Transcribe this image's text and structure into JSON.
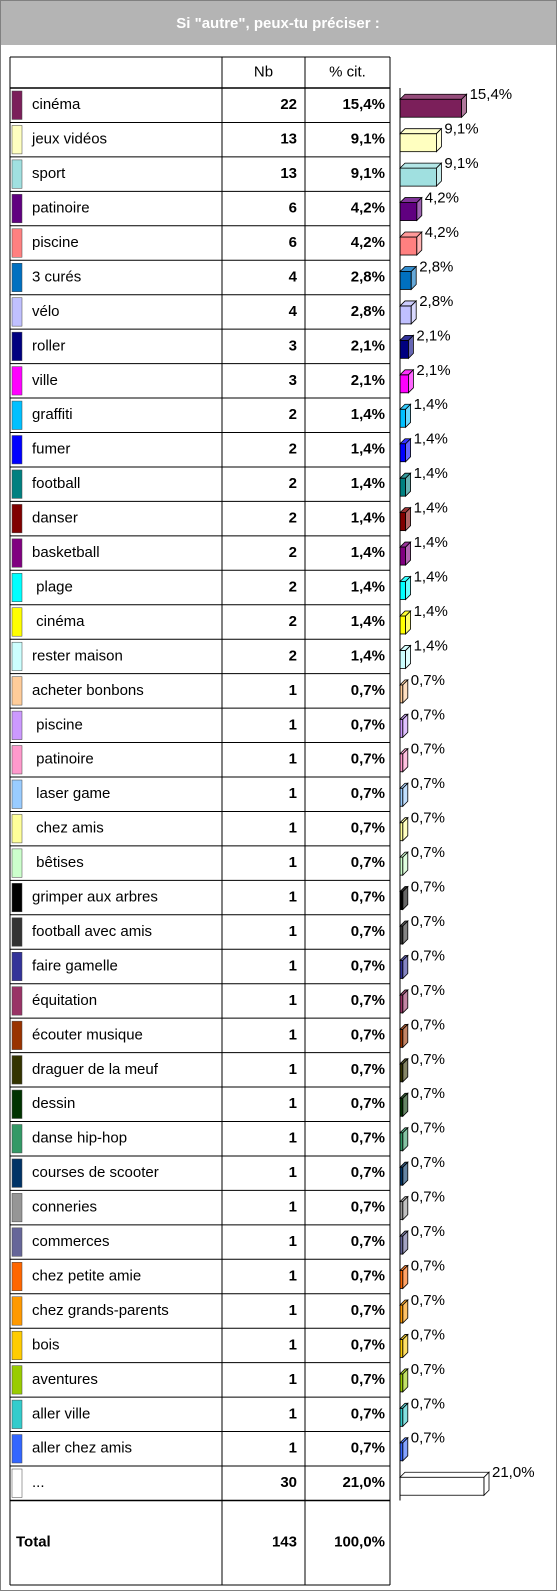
{
  "title": "Si \"autre\", peux-tu préciser :",
  "chart_data": {
    "type": "bar",
    "columns": [
      "Nb",
      "% cit."
    ],
    "categories": [
      "cinéma",
      "jeux vidéos",
      "sport",
      "patinoire",
      "piscine",
      "3 curés",
      "vélo",
      "roller",
      "ville",
      "graffiti",
      "fumer",
      "football",
      "danser",
      "basketball",
      " plage",
      " cinéma",
      "rester maison",
      "acheter bonbons",
      " piscine",
      " patinoire",
      " laser game",
      " chez amis",
      " bêtises",
      "grimper aux arbres",
      "football avec amis",
      "faire gamelle",
      "équitation",
      "écouter musique",
      "draguer de la meuf",
      "dessin",
      "danse hip-hop",
      "courses de scooter",
      "conneries",
      "commerces",
      "chez petite amie",
      "chez grands-parents",
      "bois",
      "aventures",
      "aller ville",
      "aller chez amis",
      "..."
    ],
    "counts": [
      22,
      13,
      13,
      6,
      6,
      4,
      4,
      3,
      3,
      2,
      2,
      2,
      2,
      2,
      2,
      2,
      2,
      1,
      1,
      1,
      1,
      1,
      1,
      1,
      1,
      1,
      1,
      1,
      1,
      1,
      1,
      1,
      1,
      1,
      1,
      1,
      1,
      1,
      1,
      1,
      30
    ],
    "values": [
      15.4,
      9.1,
      9.1,
      4.2,
      4.2,
      2.8,
      2.8,
      2.1,
      2.1,
      1.4,
      1.4,
      1.4,
      1.4,
      1.4,
      1.4,
      1.4,
      1.4,
      0.7,
      0.7,
      0.7,
      0.7,
      0.7,
      0.7,
      0.7,
      0.7,
      0.7,
      0.7,
      0.7,
      0.7,
      0.7,
      0.7,
      0.7,
      0.7,
      0.7,
      0.7,
      0.7,
      0.7,
      0.7,
      0.7,
      0.7,
      21.0
    ],
    "value_labels": [
      "15,4%",
      "9,1%",
      "9,1%",
      "4,2%",
      "4,2%",
      "2,8%",
      "2,8%",
      "2,1%",
      "2,1%",
      "1,4%",
      "1,4%",
      "1,4%",
      "1,4%",
      "1,4%",
      "1,4%",
      "1,4%",
      "1,4%",
      "0,7%",
      "0,7%",
      "0,7%",
      "0,7%",
      "0,7%",
      "0,7%",
      "0,7%",
      "0,7%",
      "0,7%",
      "0,7%",
      "0,7%",
      "0,7%",
      "0,7%",
      "0,7%",
      "0,7%",
      "0,7%",
      "0,7%",
      "0,7%",
      "0,7%",
      "0,7%",
      "0,7%",
      "0,7%",
      "0,7%",
      "21,0%"
    ],
    "colors": [
      "#7b1f5a",
      "#ffffc0",
      "#a0e0e0",
      "#600080",
      "#ff8080",
      "#0070c0",
      "#c0c0ff",
      "#000080",
      "#ff00ff",
      "#00c0ff",
      "#0000ff",
      "#008080",
      "#800000",
      "#800080",
      "#00ffff",
      "#ffff00",
      "#ccffff",
      "#ffcc99",
      "#cc99ff",
      "#ff99cc",
      "#99ccff",
      "#ffff99",
      "#ccffcc",
      "#000000",
      "#333333",
      "#333399",
      "#993366",
      "#993300",
      "#333300",
      "#003300",
      "#339966",
      "#003366",
      "#969696",
      "#666699",
      "#ff6600",
      "#ff9900",
      "#ffcc00",
      "#99cc00",
      "#33cccc",
      "#3366ff",
      "#ffffff"
    ],
    "total_label": "Total",
    "total_count": 143,
    "total_value": 100.0,
    "total_value_label": "100,0%"
  }
}
